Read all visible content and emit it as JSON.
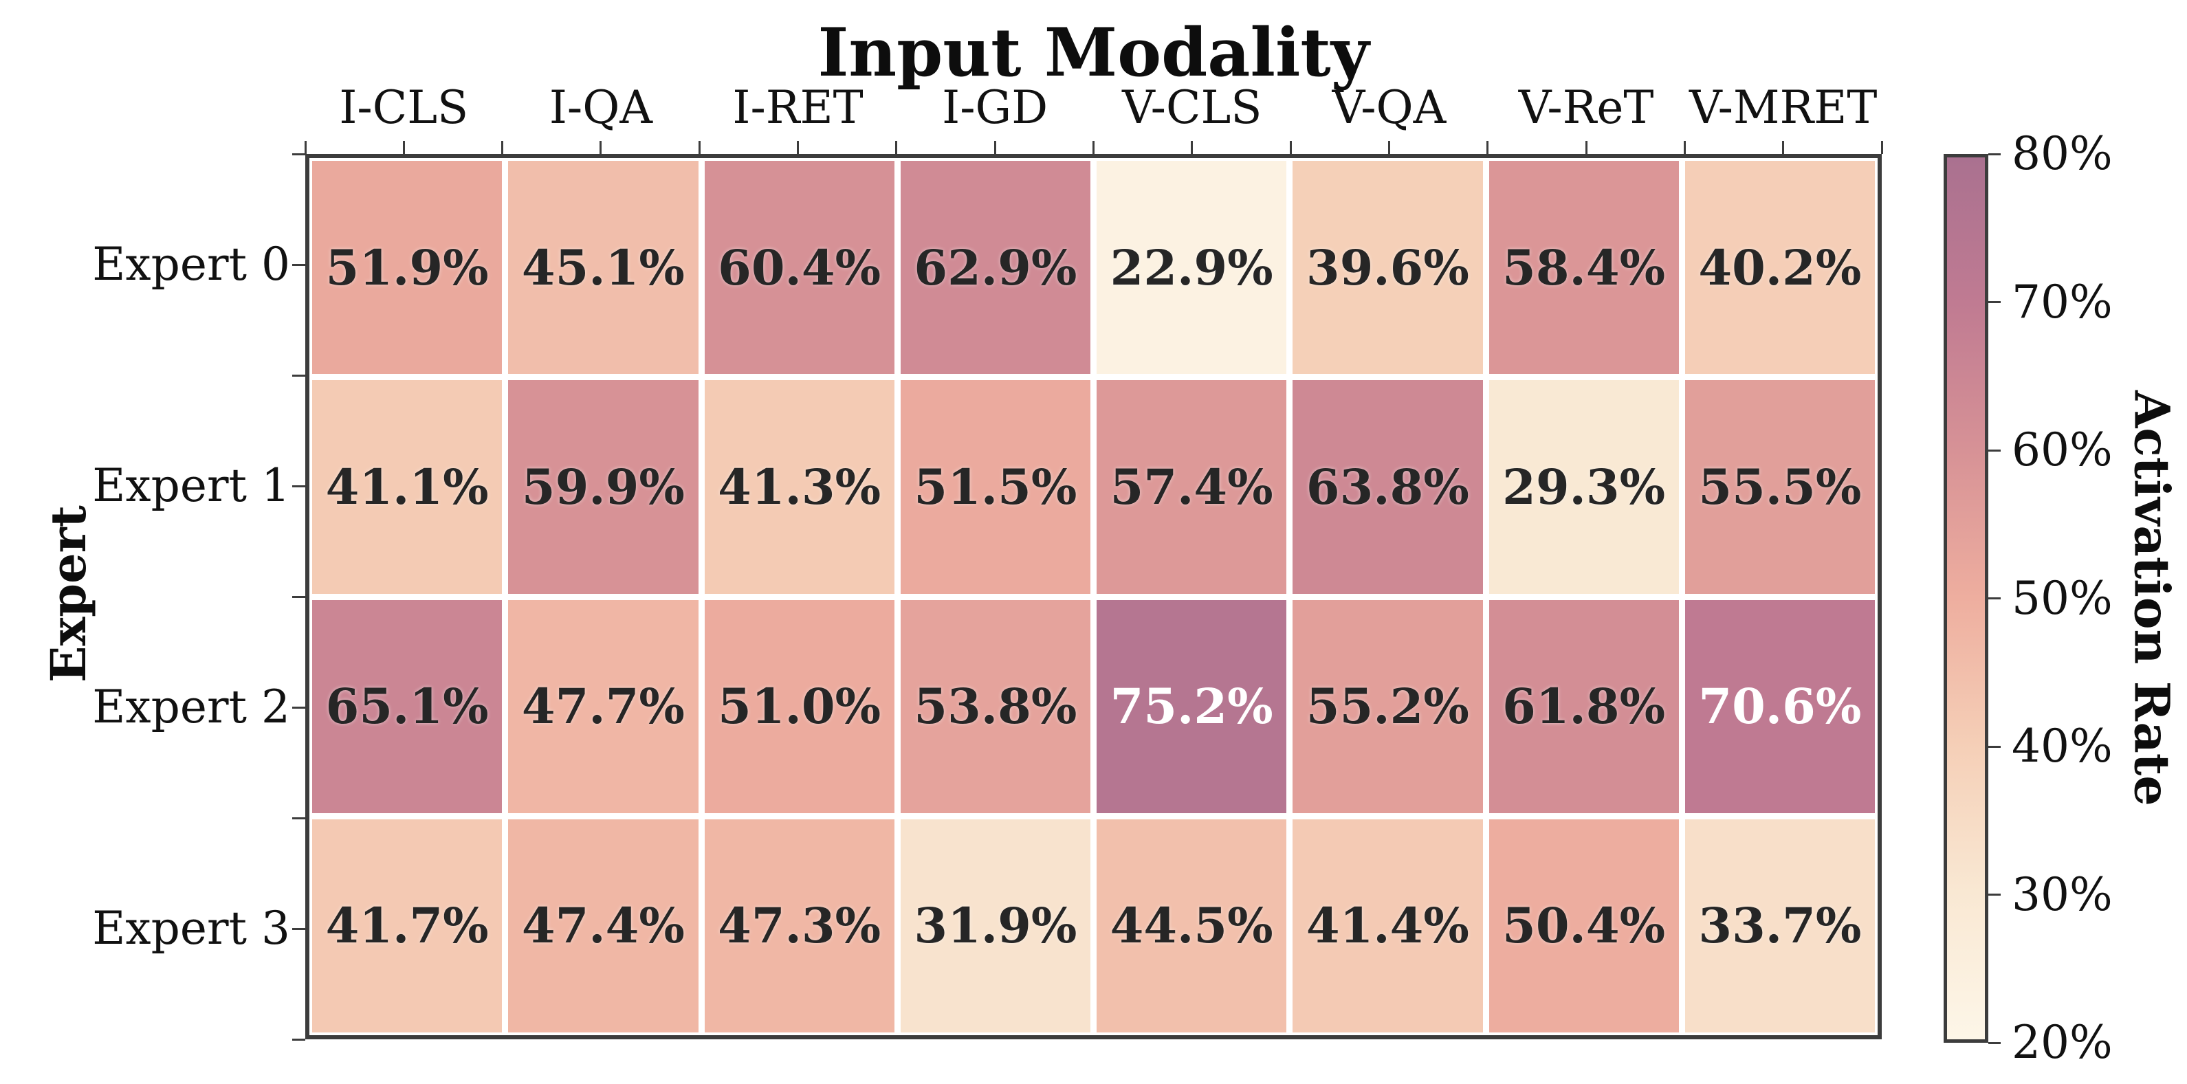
{
  "chart_data": {
    "type": "heatmap",
    "title": "Input Modality",
    "ylabel": "Expert",
    "colorbar_label": "Activation Rate",
    "columns": [
      "I-CLS",
      "I-QA",
      "I-RET",
      "I-GD",
      "V-CLS",
      "V-QA",
      "V-ReT",
      "V-MRET"
    ],
    "rows": [
      "Expert 0",
      "Expert 1",
      "Expert 2",
      "Expert 3"
    ],
    "values": [
      [
        51.9,
        45.1,
        60.4,
        62.9,
        22.9,
        39.6,
        58.4,
        40.2
      ],
      [
        41.1,
        59.9,
        41.3,
        51.5,
        57.4,
        63.8,
        29.3,
        55.5
      ],
      [
        65.1,
        47.7,
        51.0,
        53.8,
        75.2,
        55.2,
        61.8,
        70.6
      ],
      [
        41.7,
        47.4,
        47.3,
        31.9,
        44.5,
        41.4,
        50.4,
        33.7
      ]
    ],
    "value_suffix": "%",
    "vmin": 20,
    "vmax": 80,
    "colorbar_ticks": [
      {
        "value": 80,
        "label": "80%"
      },
      {
        "value": 70,
        "label": "70%"
      },
      {
        "value": 60,
        "label": "60%"
      },
      {
        "value": 50,
        "label": "50%"
      },
      {
        "value": 40,
        "label": "40%"
      },
      {
        "value": 30,
        "label": "30%"
      },
      {
        "value": 20,
        "label": "20%"
      }
    ],
    "colormap_stops": [
      {
        "value": 20,
        "color": "#fdf6e8"
      },
      {
        "value": 30,
        "color": "#f9e8d3"
      },
      {
        "value": 40,
        "color": "#f5cfb7"
      },
      {
        "value": 50,
        "color": "#eeae9f"
      },
      {
        "value": 60,
        "color": "#d79296"
      },
      {
        "value": 70,
        "color": "#c07b92"
      },
      {
        "value": 80,
        "color": "#aa7190"
      }
    ],
    "white_text_threshold": 70,
    "colors": {
      "spine": "#3c3c3c",
      "tick": "#3c3c3c",
      "label_text": "#111111",
      "annot_dark": "#262626",
      "annot_light": "#ffffff",
      "background": "#ffffff",
      "cell_gap": "#ffffff"
    },
    "legend_position": "right-colorbar",
    "grid": false
  }
}
